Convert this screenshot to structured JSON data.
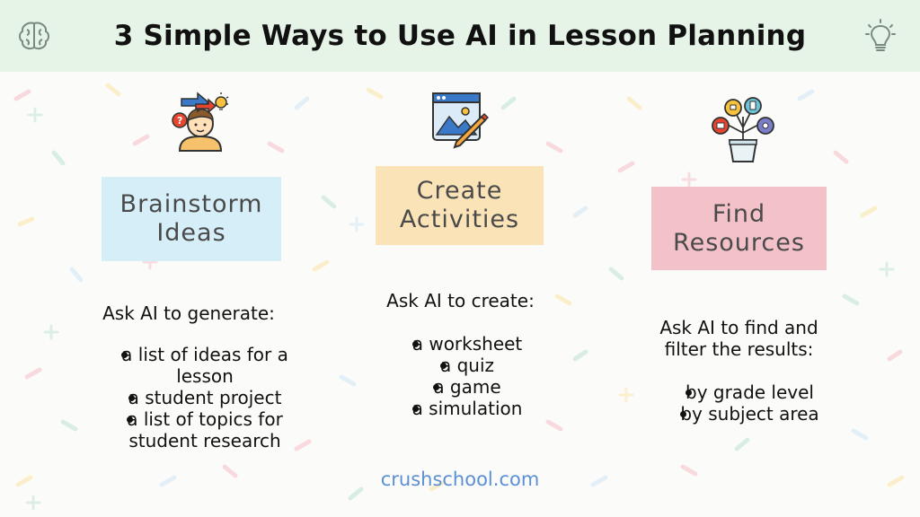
{
  "title": "3 Simple Ways to Use AI in Lesson Planning",
  "header_icons": [
    "brain-icon",
    "lightbulb-icon"
  ],
  "columns": [
    {
      "icon": "person-thinking-icon",
      "heading": "Brainstorm\nIdeas",
      "color": "#d5eef8",
      "intro": "Ask AI to generate:",
      "items": [
        "a list of ideas for a\nlesson",
        "a student project",
        "a list of topics for\nstudent research"
      ]
    },
    {
      "icon": "design-pencil-icon",
      "heading": "Create\nActivities",
      "color": "#fbe3b8",
      "intro": "Ask AI to create:",
      "items": [
        "a worksheet",
        "a quiz",
        "a game",
        "a simulation"
      ]
    },
    {
      "icon": "plant-resources-icon",
      "heading": "Find\nResources",
      "color": "#f3c2c8",
      "intro": "Ask AI to find and\nfilter the results:",
      "items": [
        "by grade level",
        "by subject area"
      ]
    }
  ],
  "footer": "crushschool.com"
}
